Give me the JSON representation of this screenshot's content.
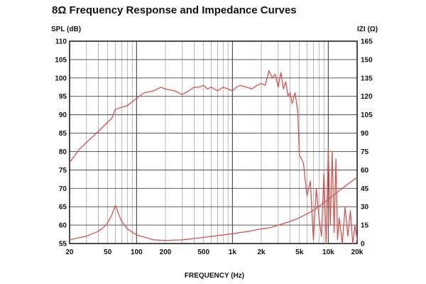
{
  "chart_data": {
    "type": "line",
    "title": "8Ω Frequency Response and Impedance Curves",
    "xlabel": "FREQUENCY (Hz)",
    "ylabel": "SPL (dB)",
    "y2label": "IZI (Ω)",
    "xscale": "log",
    "xlim": [
      20,
      20000
    ],
    "ylim": [
      55,
      110
    ],
    "y2lim": [
      0,
      165
    ],
    "x_ticks": [
      20,
      50,
      100,
      200,
      500,
      1000,
      2000,
      5000,
      10000,
      20000
    ],
    "x_tick_labels": [
      "20",
      "50",
      "100",
      "200",
      "500",
      "1k",
      "2k",
      "5k",
      "10k",
      "20k"
    ],
    "y_ticks": [
      55,
      60,
      65,
      70,
      75,
      80,
      85,
      90,
      95,
      100,
      105,
      110
    ],
    "y2_ticks": [
      0,
      15,
      30,
      45,
      60,
      75,
      90,
      105,
      120,
      135,
      150,
      165
    ],
    "grid": true,
    "line_color": "#d9534f",
    "series": [
      {
        "axis": "left",
        "x": [
          20,
          25,
          30,
          40,
          50,
          55,
          60,
          70,
          80,
          90,
          100,
          120,
          150,
          180,
          200,
          250,
          300,
          350,
          400,
          450,
          500,
          550,
          600,
          700,
          800,
          900,
          1000,
          1100,
          1200,
          1400,
          1600,
          1800,
          2000,
          2200,
          2400,
          2600,
          2800,
          3000,
          3200,
          3400,
          3600,
          3800,
          4000,
          4200,
          4500,
          4800,
          5000,
          5500,
          6000,
          6500,
          7000,
          7500,
          8000,
          8500,
          9000,
          9500,
          10000,
          10500,
          11000,
          11500,
          12000,
          12500,
          13000,
          14000,
          15000,
          16000,
          17000,
          18000,
          19000,
          20000
        ],
        "y": [
          77,
          80.5,
          82.5,
          85.5,
          88,
          89,
          91.5,
          92,
          92.5,
          93.5,
          94.5,
          96,
          96.5,
          97.5,
          97,
          96.5,
          95.5,
          96.5,
          97.5,
          97.5,
          98,
          97,
          97.5,
          96.5,
          97.5,
          97,
          96.5,
          97.5,
          98,
          97.5,
          97,
          98,
          98.5,
          98,
          102,
          100,
          101,
          97.5,
          101.5,
          97,
          99,
          95,
          96,
          93,
          96,
          91,
          79,
          77,
          68,
          72,
          56,
          70,
          62,
          57,
          74,
          55,
          81,
          60,
          80,
          58,
          78,
          56,
          62,
          55,
          65,
          57,
          64,
          55,
          60,
          56
        ]
      },
      {
        "axis": "right",
        "x": [
          20,
          30,
          40,
          45,
          50,
          55,
          58,
          60,
          62,
          65,
          70,
          80,
          100,
          150,
          200,
          300,
          500,
          1000,
          1500,
          2000,
          2500,
          3000,
          4000,
          5000,
          7000,
          10000,
          14000,
          20000
        ],
        "y": [
          3,
          6,
          10,
          13,
          17,
          23,
          28,
          31,
          29,
          24,
          18,
          12,
          7,
          3,
          2.5,
          3,
          5,
          8,
          10,
          12,
          13,
          15,
          18,
          21,
          27,
          36,
          45,
          54
        ]
      }
    ]
  }
}
